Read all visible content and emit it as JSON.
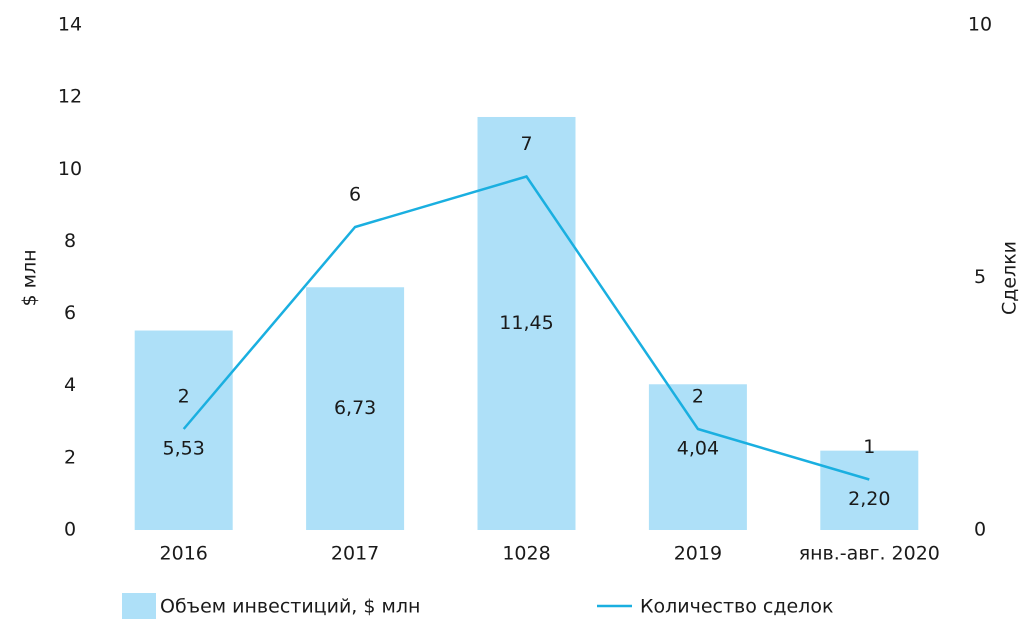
{
  "chart_data": {
    "type": "bar",
    "categories": [
      "2016",
      "2017",
      "1028",
      "2019",
      "янв.-авг. 2020"
    ],
    "series": [
      {
        "name": "Объем инвестиций, $ млн",
        "type": "bar",
        "color": "#aee0f8",
        "values": [
          5.53,
          6.73,
          11.45,
          4.04,
          2.2
        ],
        "value_labels": [
          "5,53",
          "6,73",
          "11,45",
          "4,04",
          "2,20"
        ]
      },
      {
        "name": "Количество сделок",
        "type": "line",
        "axis": "y2",
        "color": "#1aafe0",
        "values": [
          2,
          6,
          7,
          2,
          1
        ]
      }
    ],
    "ylabel": "$ млн",
    "y2label": "Сделки",
    "ylim": [
      0,
      14
    ],
    "yticks": [
      0,
      2,
      4,
      6,
      8,
      10,
      12,
      14
    ],
    "y2lim": [
      0,
      10
    ],
    "y2ticks": [
      0,
      5,
      10
    ],
    "legend": "bottom"
  }
}
